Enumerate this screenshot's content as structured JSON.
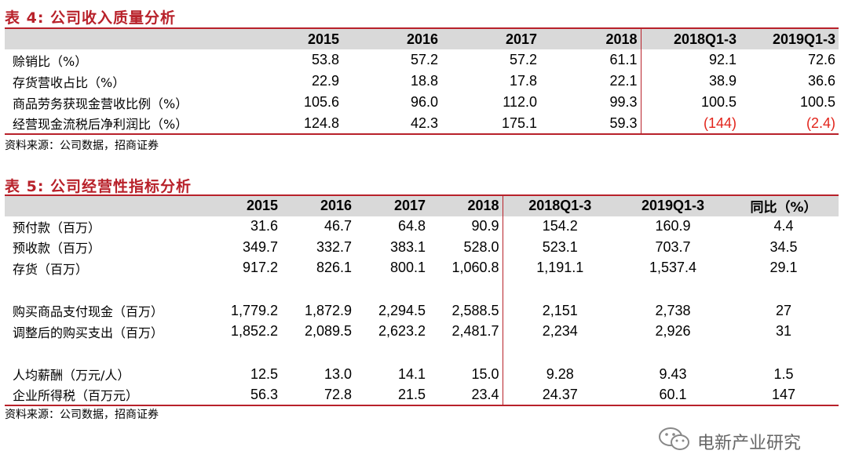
{
  "table4": {
    "title": "表 4:  公司收入质量分析",
    "headers": [
      "",
      "2015",
      "2016",
      "2017",
      "2018",
      "2018Q1-3",
      "2019Q1-3"
    ],
    "rows": [
      [
        "赊销比（%）",
        "53.8",
        "57.2",
        "57.2",
        "61.1",
        "92.1",
        "72.6"
      ],
      [
        "存货营收占比（%）",
        "22.9",
        "18.8",
        "17.8",
        "22.1",
        "38.9",
        "36.6"
      ],
      [
        "商品劳务获现金营收比例（%）",
        "105.6",
        "96.0",
        "112.0",
        "99.3",
        "100.5",
        "100.5"
      ],
      [
        "经营现金流税后净利润比（%）",
        "124.8",
        "42.3",
        "175.1",
        "59.3",
        "(144)",
        "(2.4)"
      ]
    ],
    "source": "资料来源：公司数据，招商证券"
  },
  "table5": {
    "title": "表 5:  公司经营性指标分析",
    "headers": [
      "",
      "2015",
      "2016",
      "2017",
      "2018",
      "2018Q1-3",
      "2019Q1-3",
      "同比（%）"
    ],
    "rows": [
      [
        "预付款（百万）",
        "31.6",
        "46.7",
        "64.8",
        "90.9",
        "154.2",
        "160.9",
        "4.4"
      ],
      [
        "预收款（百万）",
        "349.7",
        "332.7",
        "383.1",
        "528.0",
        "523.1",
        "703.7",
        "34.5"
      ],
      [
        "存货（百万）",
        "917.2",
        "826.1",
        "800.1",
        "1,060.8",
        "1,191.1",
        "1,537.4",
        "29.1"
      ],
      [
        "",
        "",
        "",
        "",
        "",
        "",
        "",
        ""
      ],
      [
        "购买商品支付现金（百万）",
        "1,779.2",
        "1,872.9",
        "2,294.5",
        "2,588.5",
        "2,151",
        "2,738",
        "27"
      ],
      [
        "调整后的购买支出（百万）",
        "1,852.2",
        "2,089.5",
        "2,623.2",
        "2,481.7",
        "2,234",
        "2,926",
        "31"
      ],
      [
        "",
        "",
        "",
        "",
        "",
        "",
        "",
        ""
      ],
      [
        "人均薪酬（万元/人）",
        "12.5",
        "13.0",
        "14.1",
        "15.0",
        "9.28",
        "9.43",
        "1.5"
      ],
      [
        "企业所得税（百万元）",
        "56.3",
        "72.8",
        "21.5",
        "23.4",
        "24.37",
        "60.1",
        "147"
      ]
    ],
    "source": "资料来源：公司数据，招商证券"
  },
  "watermark": {
    "text": "电新产业研究",
    "icon": "wechat-icon"
  },
  "colors": {
    "accent": "#b8212a",
    "negative": "#e2241b",
    "header_bg": "#d9d9d9"
  }
}
